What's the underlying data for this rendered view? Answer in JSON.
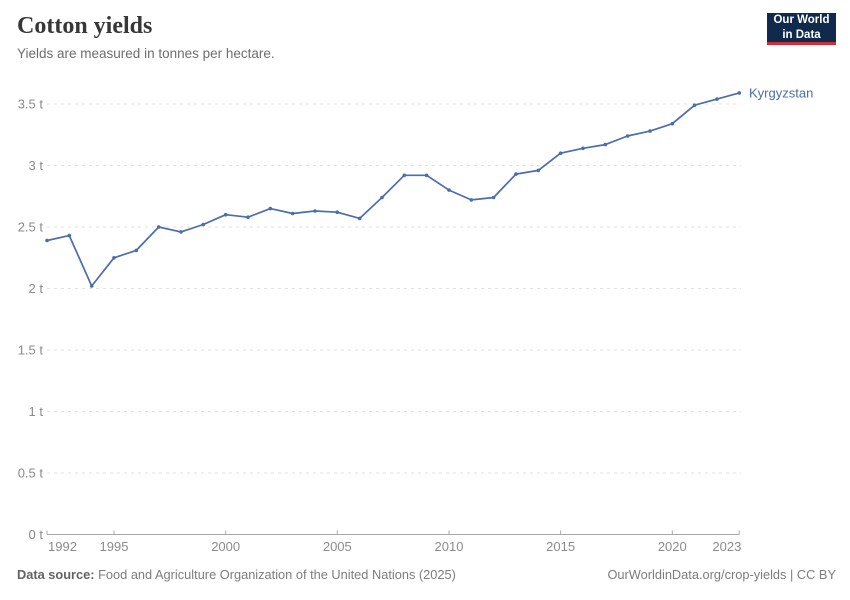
{
  "header": {
    "title": "Cotton yields",
    "subtitle": "Yields are measured in tonnes per hectare."
  },
  "logo": {
    "line1": "Our World",
    "line2": "in Data"
  },
  "footer": {
    "source_label": "Data source:",
    "source_text": "Food and Agriculture Organization of the United Nations (2025)",
    "attribution": "OurWorldinData.org/crop-yields | CC BY"
  },
  "colors": {
    "line": "#4c6cab",
    "grid": "#e2e2e2",
    "axis": "#a8a8a8",
    "tick_label": "#8b8b8b",
    "logo_bg": "#102a4c",
    "logo_red": "#d12d36"
  },
  "chart_data": {
    "type": "line",
    "title": "Cotton yields",
    "subtitle": "Yields are measured in tonnes per hectare.",
    "unit": "tonnes per hectare",
    "grid": "horizontal dashed",
    "legend_position": "end-of-line label",
    "xlim": [
      1992,
      2023
    ],
    "ylim": [
      0,
      3.5
    ],
    "xticks": [
      1992,
      1995,
      2000,
      2005,
      2010,
      2015,
      2020,
      2023
    ],
    "yticks": [
      0,
      0.5,
      1,
      1.5,
      2,
      2.5,
      3,
      3.5
    ],
    "ytick_labels": [
      "0 t",
      "0.5 t",
      "1 t",
      "1.5 t",
      "2 t",
      "2.5 t",
      "3 t",
      "3.5 t"
    ],
    "x": [
      1992,
      1993,
      1994,
      1995,
      1996,
      1997,
      1998,
      1999,
      2000,
      2001,
      2002,
      2003,
      2004,
      2005,
      2006,
      2007,
      2008,
      2009,
      2010,
      2011,
      2012,
      2013,
      2014,
      2015,
      2016,
      2017,
      2018,
      2019,
      2020,
      2021,
      2022,
      2023
    ],
    "series": [
      {
        "name": "Kyrgyzstan",
        "values": [
          2.39,
          2.43,
          2.02,
          2.25,
          2.31,
          2.5,
          2.46,
          2.52,
          2.6,
          2.58,
          2.65,
          2.61,
          2.63,
          2.62,
          2.57,
          2.74,
          2.92,
          2.92,
          2.8,
          2.72,
          2.74,
          2.93,
          2.96,
          3.1,
          3.14,
          3.17,
          3.24,
          3.28,
          3.34,
          3.49,
          3.54,
          3.59
        ]
      }
    ]
  }
}
